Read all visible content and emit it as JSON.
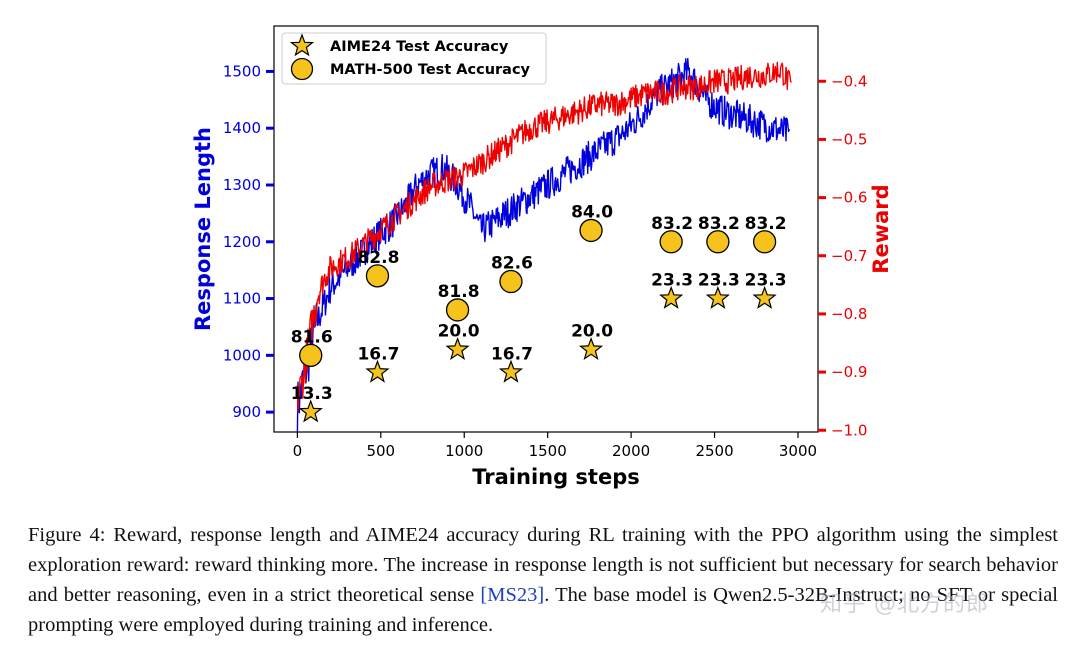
{
  "chart_data": {
    "type": "line",
    "xlabel": "Training steps",
    "ylabel_left": "Response Length",
    "ylabel_right": "Reward",
    "xlim": [
      -140,
      3120
    ],
    "ylim_left": [
      865,
      1580
    ],
    "ylim_right": [
      -1.003,
      -0.305
    ],
    "x_ticks": [
      0,
      500,
      1000,
      1500,
      2000,
      2500,
      3000
    ],
    "y_left_ticks": [
      900,
      1000,
      1100,
      1200,
      1300,
      1400,
      1500
    ],
    "y_right_ticks": [
      -1.0,
      -0.9,
      -0.8,
      -0.7,
      -0.6,
      -0.5,
      -0.4
    ],
    "y_right_tick_labels": [
      "−1.0",
      "−0.9",
      "−0.8",
      "−0.7",
      "−0.6",
      "−0.5",
      "−0.4"
    ],
    "grid": false,
    "legend_position": "top-left",
    "colors": {
      "response_length": "#0000dd",
      "reward": "#ee0000",
      "marker_fill": "#f5c31b",
      "marker_edge": "#000000"
    },
    "series": [
      {
        "name": "Response Length",
        "axis": "left",
        "color": "#0000dd",
        "x": [
          0,
          40,
          80,
          120,
          160,
          200,
          260,
          320,
          400,
          480,
          560,
          640,
          720,
          800,
          880,
          960,
          1040,
          1100,
          1160,
          1250,
          1350,
          1450,
          1550,
          1650,
          1750,
          1850,
          1950,
          2050,
          2150,
          2250,
          2350,
          2450,
          2550,
          2650,
          2750,
          2850,
          2950
        ],
        "y": [
          910,
          960,
          1010,
          1060,
          1090,
          1120,
          1140,
          1160,
          1185,
          1210,
          1230,
          1260,
          1300,
          1320,
          1330,
          1300,
          1260,
          1220,
          1230,
          1250,
          1270,
          1290,
          1310,
          1330,
          1350,
          1370,
          1390,
          1420,
          1460,
          1480,
          1500,
          1450,
          1430,
          1420,
          1410,
          1400,
          1390
        ]
      },
      {
        "name": "Reward",
        "axis": "right",
        "color": "#ee0000",
        "x": [
          0,
          40,
          80,
          120,
          160,
          200,
          260,
          320,
          400,
          480,
          560,
          640,
          720,
          800,
          900,
          1000,
          1100,
          1200,
          1300,
          1400,
          1500,
          1600,
          1700,
          1800,
          1900,
          2000,
          2100,
          2200,
          2300,
          2400,
          2500,
          2600,
          2700,
          2800,
          2900,
          2960
        ],
        "y": [
          -0.95,
          -0.9,
          -0.83,
          -0.77,
          -0.74,
          -0.72,
          -0.71,
          -0.7,
          -0.68,
          -0.66,
          -0.64,
          -0.62,
          -0.6,
          -0.58,
          -0.57,
          -0.56,
          -0.54,
          -0.52,
          -0.5,
          -0.48,
          -0.47,
          -0.46,
          -0.45,
          -0.44,
          -0.44,
          -0.43,
          -0.42,
          -0.42,
          -0.41,
          -0.41,
          -0.4,
          -0.4,
          -0.39,
          -0.39,
          -0.38,
          -0.41
        ]
      }
    ],
    "markers": [
      {
        "name": "AIME24 Test Accuracy",
        "shape": "star",
        "x": [
          80,
          480,
          960,
          1280,
          1760,
          2240,
          2520,
          2800
        ],
        "y": [
          900,
          970,
          1010,
          970,
          1010,
          1100,
          1100,
          1100
        ],
        "labels": [
          "13.3",
          "16.7",
          "20.0",
          "16.7",
          "20.0",
          "23.3",
          "23.3",
          "23.3"
        ]
      },
      {
        "name": "MATH-500 Test Accuracy",
        "shape": "circle",
        "x": [
          80,
          480,
          960,
          1280,
          1760,
          2240,
          2520,
          2800
        ],
        "y": [
          1000,
          1140,
          1080,
          1130,
          1220,
          1200,
          1200,
          1200
        ],
        "labels": [
          "81.6",
          "82.8",
          "81.8",
          "82.6",
          "84.0",
          "83.2",
          "83.2",
          "83.2"
        ]
      }
    ]
  },
  "caption": {
    "label": "Figure 4:",
    "text_before_cite": " Reward, response length and AIME24 accuracy during RL training with the PPO algorithm using the simplest exploration reward: reward thinking more. The increase in response length is not sufficient but necessary for search behavior and better reasoning, even in a strict theoretical sense ",
    "cite": "[MS23]",
    "text_after_cite": ". The base model is Qwen2.5-32B-Instruct; no SFT or special prompting were employed during training and inference."
  },
  "watermark": "知乎 @北方的郎"
}
